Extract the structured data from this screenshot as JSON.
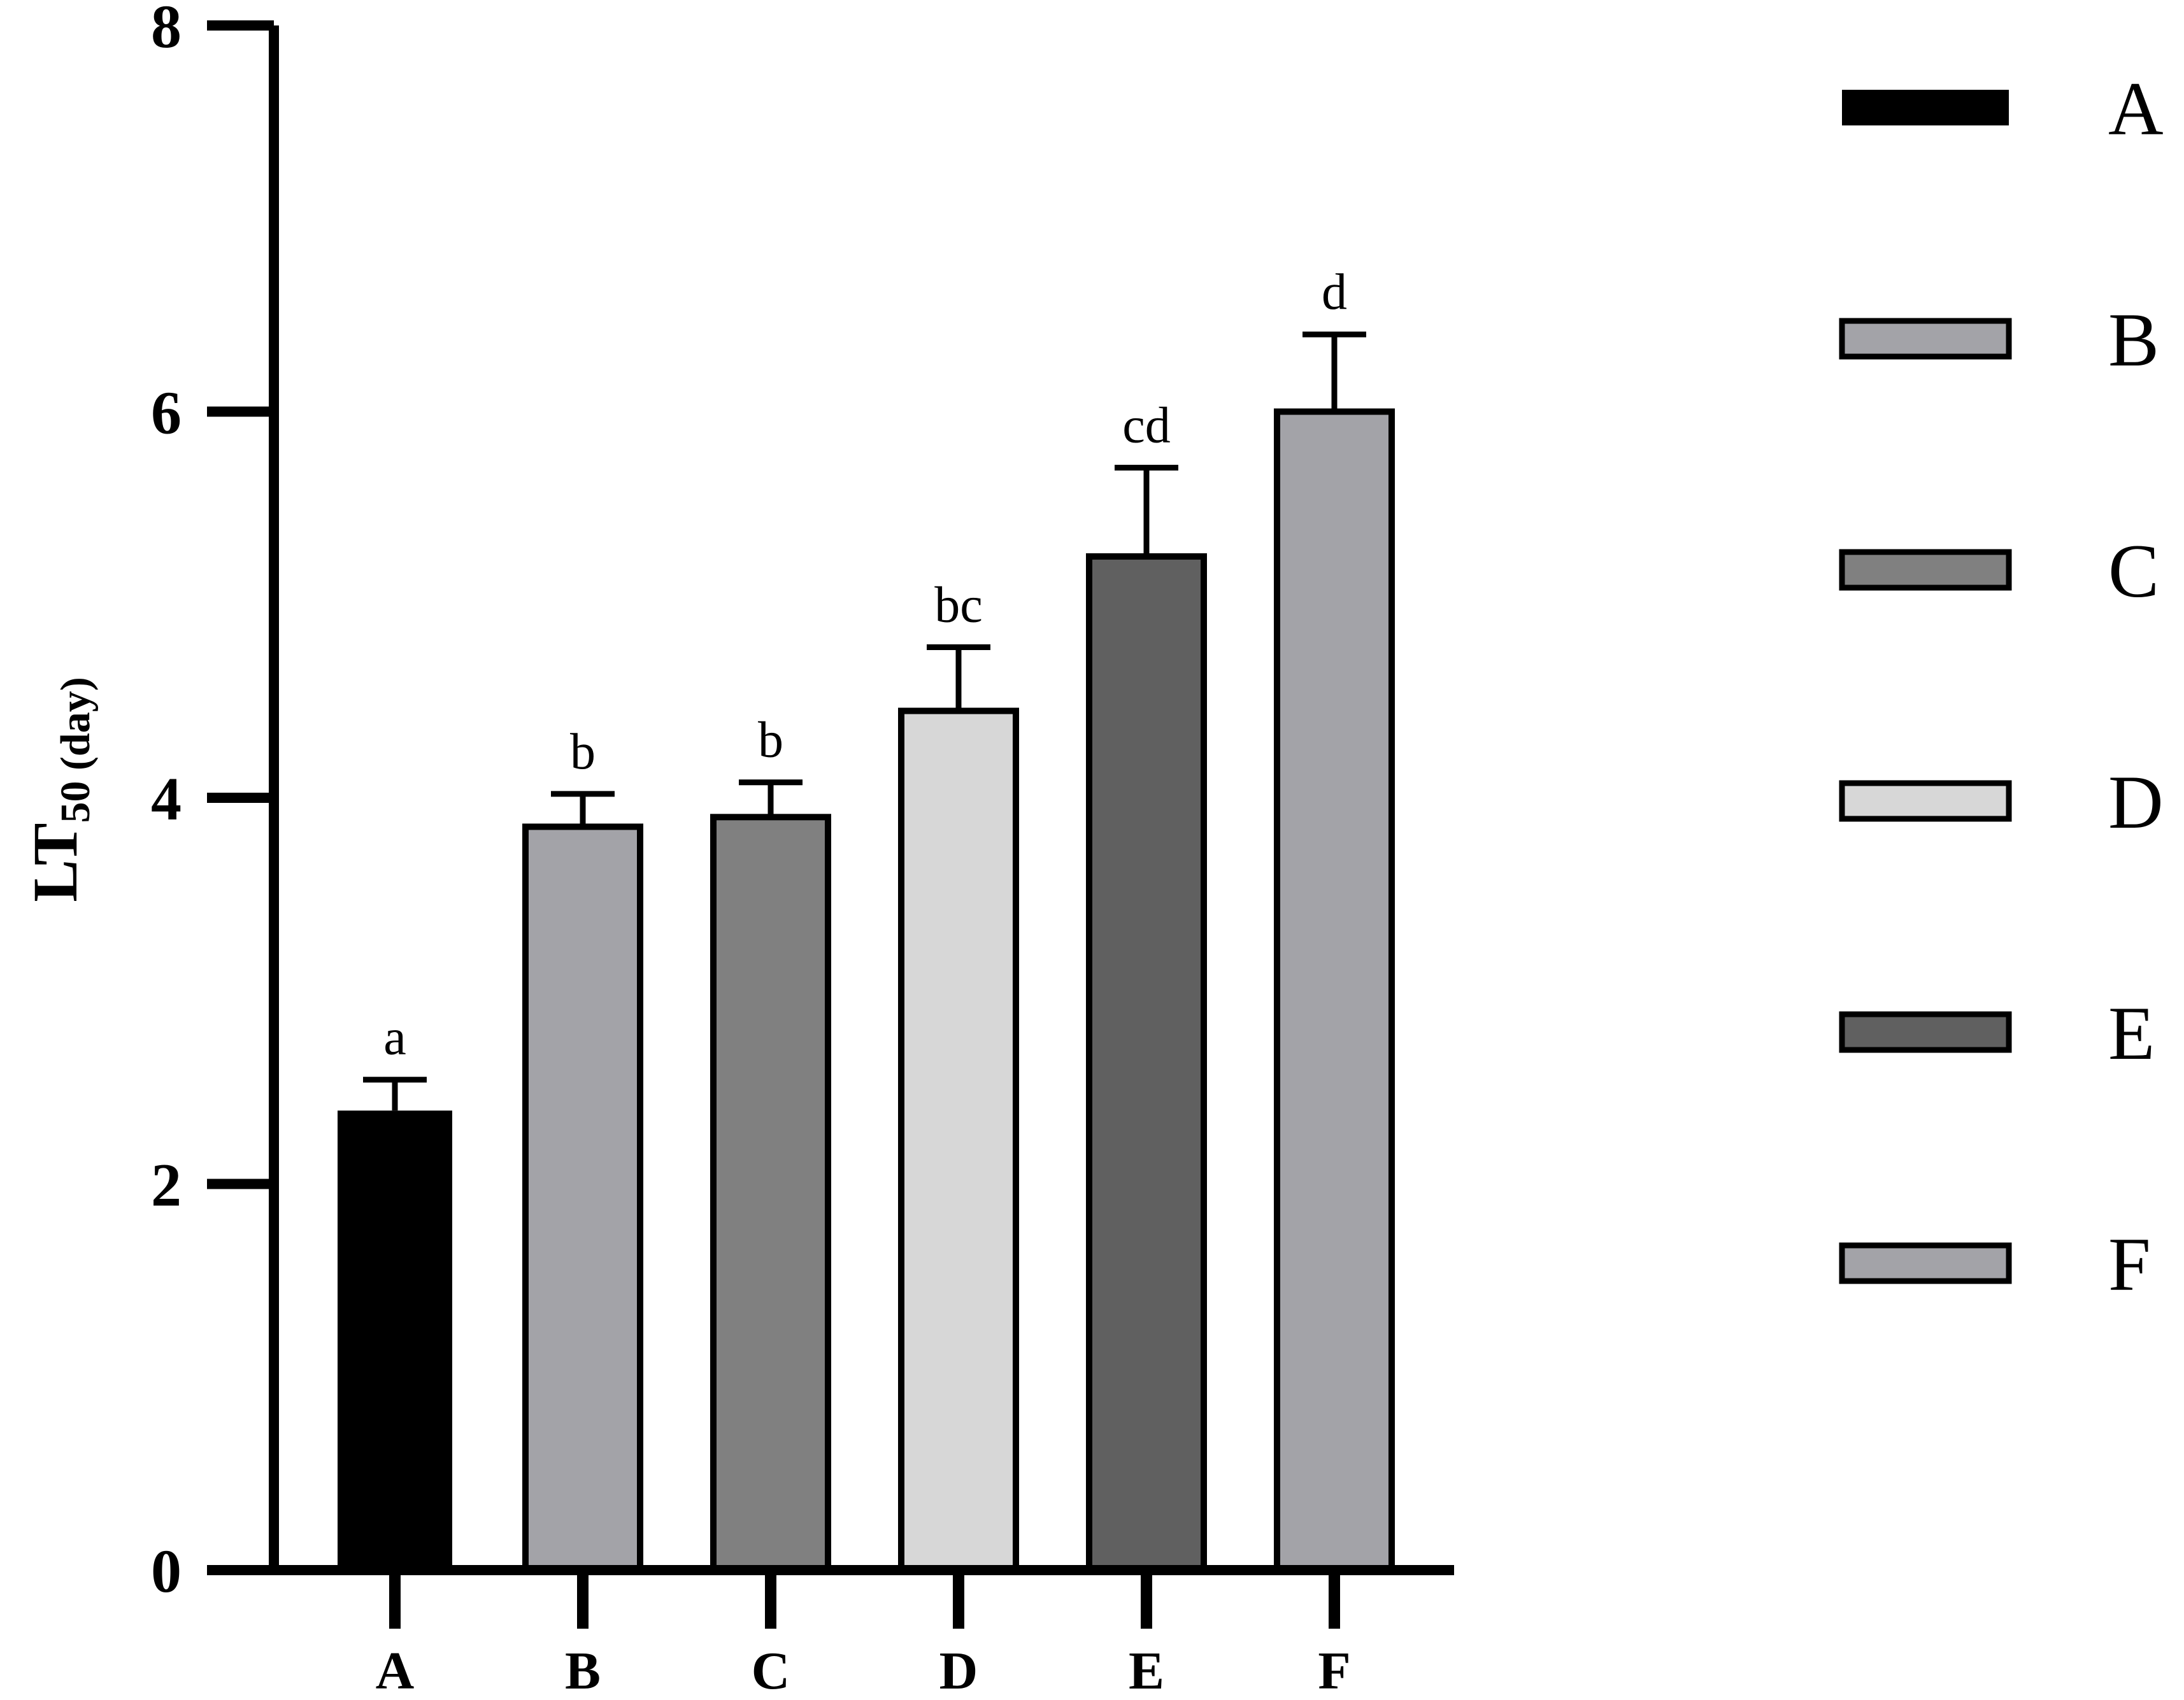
{
  "chart_data": {
    "type": "bar",
    "categories": [
      "A",
      "B",
      "C",
      "D",
      "E",
      "F"
    ],
    "values": [
      2.38,
      3.85,
      3.9,
      4.45,
      5.25,
      6.0
    ],
    "errors": [
      0.16,
      0.17,
      0.18,
      0.33,
      0.46,
      0.4
    ],
    "significance": [
      "a",
      "b",
      "b",
      "bc",
      "cd",
      "d"
    ],
    "colors": [
      "#000000",
      "#a3a3a8",
      "#808080",
      "#d7d7d7",
      "#606060",
      "#a3a3a8"
    ],
    "title": "",
    "xlabel": "",
    "ylabel": {
      "main": "LT",
      "subscript": "50 (day)"
    },
    "ylim": [
      0,
      8
    ],
    "yticks": [
      0,
      2,
      4,
      6,
      8
    ],
    "grid": false,
    "legend": {
      "placement": "right",
      "entries": [
        "A",
        "B",
        "C",
        "D",
        "E",
        "F"
      ]
    }
  }
}
